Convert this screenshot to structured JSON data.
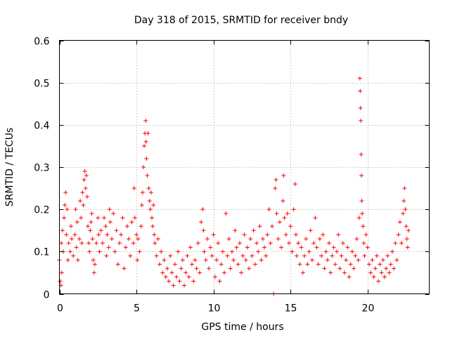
{
  "chart_data": {
    "type": "scatter",
    "title": "Day 318 of 2015, SRMTID for receiver bndy",
    "xlabel": "GPS time / hours",
    "ylabel": "SRMTID / TECUs",
    "xlim": [
      0,
      24
    ],
    "ylim": [
      0,
      0.6
    ],
    "xticks": [
      0,
      5,
      10,
      15,
      20
    ],
    "xtick_labels": [
      "0",
      "5",
      "10",
      "15",
      "20"
    ],
    "yticks": [
      0,
      0.1,
      0.2,
      0.3,
      0.4,
      0.5,
      0.6
    ],
    "ytick_labels": [
      "0",
      "0.1",
      "0.2",
      "0.3",
      "0.4",
      "0.5",
      "0.6"
    ],
    "grid": true,
    "marker": "+",
    "color": "#ff0000",
    "series": [
      {
        "name": "SRMTID",
        "points": [
          [
            0.0,
            0.08
          ],
          [
            0.05,
            0.03
          ],
          [
            0.1,
            0.02
          ],
          [
            0.12,
            0.12
          ],
          [
            0.15,
            0.05
          ],
          [
            0.2,
            0.15
          ],
          [
            0.25,
            0.1
          ],
          [
            0.3,
            0.18
          ],
          [
            0.35,
            0.21
          ],
          [
            0.4,
            0.24
          ],
          [
            0.45,
            0.14
          ],
          [
            0.5,
            0.2
          ],
          [
            0.55,
            0.08
          ],
          [
            0.6,
            0.12
          ],
          [
            0.7,
            0.1
          ],
          [
            0.75,
            0.16
          ],
          [
            0.8,
            0.13
          ],
          [
            0.9,
            0.09
          ],
          [
            1.0,
            0.14
          ],
          [
            1.05,
            0.2
          ],
          [
            1.1,
            0.11
          ],
          [
            1.15,
            0.17
          ],
          [
            1.2,
            0.08
          ],
          [
            1.3,
            0.13
          ],
          [
            1.35,
            0.22
          ],
          [
            1.4,
            0.18
          ],
          [
            1.45,
            0.12
          ],
          [
            1.5,
            0.24
          ],
          [
            1.55,
            0.21
          ],
          [
            1.6,
            0.27
          ],
          [
            1.65,
            0.29
          ],
          [
            1.7,
            0.25
          ],
          [
            1.75,
            0.28
          ],
          [
            1.8,
            0.23
          ],
          [
            1.85,
            0.16
          ],
          [
            1.9,
            0.12
          ],
          [
            1.95,
            0.1
          ],
          [
            2.0,
            0.15
          ],
          [
            2.05,
            0.17
          ],
          [
            2.1,
            0.19
          ],
          [
            2.15,
            0.13
          ],
          [
            2.2,
            0.08
          ],
          [
            2.25,
            0.05
          ],
          [
            2.3,
            0.07
          ],
          [
            2.4,
            0.12
          ],
          [
            2.5,
            0.18
          ],
          [
            2.55,
            0.14
          ],
          [
            2.6,
            0.1
          ],
          [
            2.7,
            0.15
          ],
          [
            2.8,
            0.12
          ],
          [
            2.9,
            0.18
          ],
          [
            3.0,
            0.16
          ],
          [
            3.05,
            0.09
          ],
          [
            3.1,
            0.14
          ],
          [
            3.2,
            0.11
          ],
          [
            3.25,
            0.2
          ],
          [
            3.3,
            0.17
          ],
          [
            3.4,
            0.13
          ],
          [
            3.5,
            0.19
          ],
          [
            3.6,
            0.1
          ],
          [
            3.7,
            0.15
          ],
          [
            3.8,
            0.07
          ],
          [
            3.9,
            0.12
          ],
          [
            4.0,
            0.14
          ],
          [
            4.1,
            0.18
          ],
          [
            4.2,
            0.06
          ],
          [
            4.3,
            0.11
          ],
          [
            4.4,
            0.16
          ],
          [
            4.5,
            0.13
          ],
          [
            4.6,
            0.09
          ],
          [
            4.7,
            0.17
          ],
          [
            4.8,
            0.12
          ],
          [
            4.85,
            0.25
          ],
          [
            4.9,
            0.18
          ],
          [
            5.0,
            0.14
          ],
          [
            5.05,
            0.08
          ],
          [
            5.1,
            0.13
          ],
          [
            5.2,
            0.1
          ],
          [
            5.3,
            0.16
          ],
          [
            5.35,
            0.21
          ],
          [
            5.4,
            0.24
          ],
          [
            5.45,
            0.3
          ],
          [
            5.5,
            0.35
          ],
          [
            5.55,
            0.38
          ],
          [
            5.6,
            0.41
          ],
          [
            5.62,
            0.36
          ],
          [
            5.65,
            0.32
          ],
          [
            5.7,
            0.28
          ],
          [
            5.75,
            0.38
          ],
          [
            5.8,
            0.25
          ],
          [
            5.85,
            0.22
          ],
          [
            5.9,
            0.2
          ],
          [
            5.95,
            0.24
          ],
          [
            6.0,
            0.18
          ],
          [
            6.05,
            0.16
          ],
          [
            6.1,
            0.21
          ],
          [
            6.15,
            0.14
          ],
          [
            6.2,
            0.12
          ],
          [
            6.3,
            0.09
          ],
          [
            6.4,
            0.13
          ],
          [
            6.5,
            0.07
          ],
          [
            6.6,
            0.1
          ],
          [
            6.7,
            0.05
          ],
          [
            6.8,
            0.08
          ],
          [
            6.9,
            0.04
          ],
          [
            7.0,
            0.06
          ],
          [
            7.1,
            0.03
          ],
          [
            7.2,
            0.09
          ],
          [
            7.3,
            0.05
          ],
          [
            7.4,
            0.02
          ],
          [
            7.5,
            0.07
          ],
          [
            7.6,
            0.04
          ],
          [
            7.7,
            0.1
          ],
          [
            7.8,
            0.03
          ],
          [
            7.9,
            0.06
          ],
          [
            8.0,
            0.08
          ],
          [
            8.1,
            0.02
          ],
          [
            8.2,
            0.05
          ],
          [
            8.3,
            0.09
          ],
          [
            8.4,
            0.04
          ],
          [
            8.5,
            0.11
          ],
          [
            8.6,
            0.07
          ],
          [
            8.7,
            0.03
          ],
          [
            8.8,
            0.08
          ],
          [
            8.9,
            0.06
          ],
          [
            9.0,
            0.12
          ],
          [
            9.1,
            0.05
          ],
          [
            9.2,
            0.17
          ],
          [
            9.3,
            0.2
          ],
          [
            9.35,
            0.15
          ],
          [
            9.4,
            0.1
          ],
          [
            9.5,
            0.08
          ],
          [
            9.6,
            0.13
          ],
          [
            9.7,
            0.06
          ],
          [
            9.8,
            0.11
          ],
          [
            9.9,
            0.09
          ],
          [
            10.0,
            0.14
          ],
          [
            10.1,
            0.04
          ],
          [
            10.2,
            0.08
          ],
          [
            10.3,
            0.12
          ],
          [
            10.4,
            0.03
          ],
          [
            10.5,
            0.07
          ],
          [
            10.6,
            0.1
          ],
          [
            10.7,
            0.05
          ],
          [
            10.8,
            0.19
          ],
          [
            10.9,
            0.09
          ],
          [
            11.0,
            0.13
          ],
          [
            11.1,
            0.06
          ],
          [
            11.2,
            0.1
          ],
          [
            11.3,
            0.08
          ],
          [
            11.4,
            0.15
          ],
          [
            11.5,
            0.11
          ],
          [
            11.6,
            0.07
          ],
          [
            11.7,
            0.12
          ],
          [
            11.8,
            0.05
          ],
          [
            11.9,
            0.09
          ],
          [
            12.0,
            0.14
          ],
          [
            12.1,
            0.08
          ],
          [
            12.2,
            0.11
          ],
          [
            12.3,
            0.06
          ],
          [
            12.4,
            0.13
          ],
          [
            12.5,
            0.09
          ],
          [
            12.6,
            0.15
          ],
          [
            12.7,
            0.07
          ],
          [
            12.8,
            0.12
          ],
          [
            12.9,
            0.1
          ],
          [
            13.0,
            0.16
          ],
          [
            13.1,
            0.08
          ],
          [
            13.2,
            0.13
          ],
          [
            13.3,
            0.11
          ],
          [
            13.4,
            0.09
          ],
          [
            13.5,
            0.14
          ],
          [
            13.6,
            0.2
          ],
          [
            13.7,
            0.12
          ],
          [
            13.8,
            0.16
          ],
          [
            13.9,
            0.0
          ],
          [
            14.0,
            0.25
          ],
          [
            14.05,
            0.27
          ],
          [
            14.1,
            0.19
          ],
          [
            14.2,
            0.13
          ],
          [
            14.3,
            0.17
          ],
          [
            14.4,
            0.11
          ],
          [
            14.5,
            0.22
          ],
          [
            14.55,
            0.28
          ],
          [
            14.6,
            0.18
          ],
          [
            14.7,
            0.14
          ],
          [
            14.8,
            0.19
          ],
          [
            14.9,
            0.12
          ],
          [
            15.0,
            0.16
          ],
          [
            15.1,
            0.1
          ],
          [
            15.2,
            0.2
          ],
          [
            15.3,
            0.26
          ],
          [
            15.35,
            0.14
          ],
          [
            15.4,
            0.09
          ],
          [
            15.5,
            0.12
          ],
          [
            15.6,
            0.07
          ],
          [
            15.7,
            0.11
          ],
          [
            15.8,
            0.05
          ],
          [
            15.9,
            0.09
          ],
          [
            16.0,
            0.13
          ],
          [
            16.1,
            0.07
          ],
          [
            16.2,
            0.1
          ],
          [
            16.3,
            0.15
          ],
          [
            16.4,
            0.08
          ],
          [
            16.5,
            0.12
          ],
          [
            16.6,
            0.18
          ],
          [
            16.7,
            0.11
          ],
          [
            16.8,
            0.07
          ],
          [
            16.9,
            0.13
          ],
          [
            17.0,
            0.09
          ],
          [
            17.1,
            0.14
          ],
          [
            17.2,
            0.06
          ],
          [
            17.3,
            0.1
          ],
          [
            17.4,
            0.08
          ],
          [
            17.5,
            0.12
          ],
          [
            17.6,
            0.05
          ],
          [
            17.7,
            0.09
          ],
          [
            17.8,
            0.11
          ],
          [
            17.9,
            0.07
          ],
          [
            18.0,
            0.1
          ],
          [
            18.1,
            0.14
          ],
          [
            18.2,
            0.06
          ],
          [
            18.3,
            0.09
          ],
          [
            18.4,
            0.12
          ],
          [
            18.5,
            0.05
          ],
          [
            18.6,
            0.08
          ],
          [
            18.7,
            0.11
          ],
          [
            18.8,
            0.04
          ],
          [
            18.9,
            0.07
          ],
          [
            19.0,
            0.1
          ],
          [
            19.1,
            0.06
          ],
          [
            19.2,
            0.09
          ],
          [
            19.3,
            0.13
          ],
          [
            19.4,
            0.08
          ],
          [
            19.45,
            0.18
          ],
          [
            19.5,
            0.51
          ],
          [
            19.52,
            0.48
          ],
          [
            19.54,
            0.44
          ],
          [
            19.56,
            0.41
          ],
          [
            19.58,
            0.33
          ],
          [
            19.6,
            0.28
          ],
          [
            19.62,
            0.22
          ],
          [
            19.65,
            0.19
          ],
          [
            19.7,
            0.16
          ],
          [
            19.75,
            0.12
          ],
          [
            19.8,
            0.09
          ],
          [
            19.9,
            0.14
          ],
          [
            20.0,
            0.11
          ],
          [
            20.1,
            0.07
          ],
          [
            20.2,
            0.05
          ],
          [
            20.3,
            0.08
          ],
          [
            20.4,
            0.04
          ],
          [
            20.5,
            0.06
          ],
          [
            20.6,
            0.09
          ],
          [
            20.7,
            0.03
          ],
          [
            20.8,
            0.07
          ],
          [
            20.9,
            0.05
          ],
          [
            21.0,
            0.08
          ],
          [
            21.1,
            0.04
          ],
          [
            21.2,
            0.06
          ],
          [
            21.3,
            0.09
          ],
          [
            21.4,
            0.05
          ],
          [
            21.5,
            0.07
          ],
          [
            21.6,
            0.1
          ],
          [
            21.7,
            0.06
          ],
          [
            21.8,
            0.12
          ],
          [
            21.9,
            0.08
          ],
          [
            22.0,
            0.14
          ],
          [
            22.1,
            0.17
          ],
          [
            22.2,
            0.12
          ],
          [
            22.3,
            0.19
          ],
          [
            22.35,
            0.22
          ],
          [
            22.4,
            0.25
          ],
          [
            22.45,
            0.2
          ],
          [
            22.5,
            0.16
          ],
          [
            22.55,
            0.13
          ],
          [
            22.6,
            0.11
          ],
          [
            22.65,
            0.15
          ]
        ]
      }
    ]
  }
}
